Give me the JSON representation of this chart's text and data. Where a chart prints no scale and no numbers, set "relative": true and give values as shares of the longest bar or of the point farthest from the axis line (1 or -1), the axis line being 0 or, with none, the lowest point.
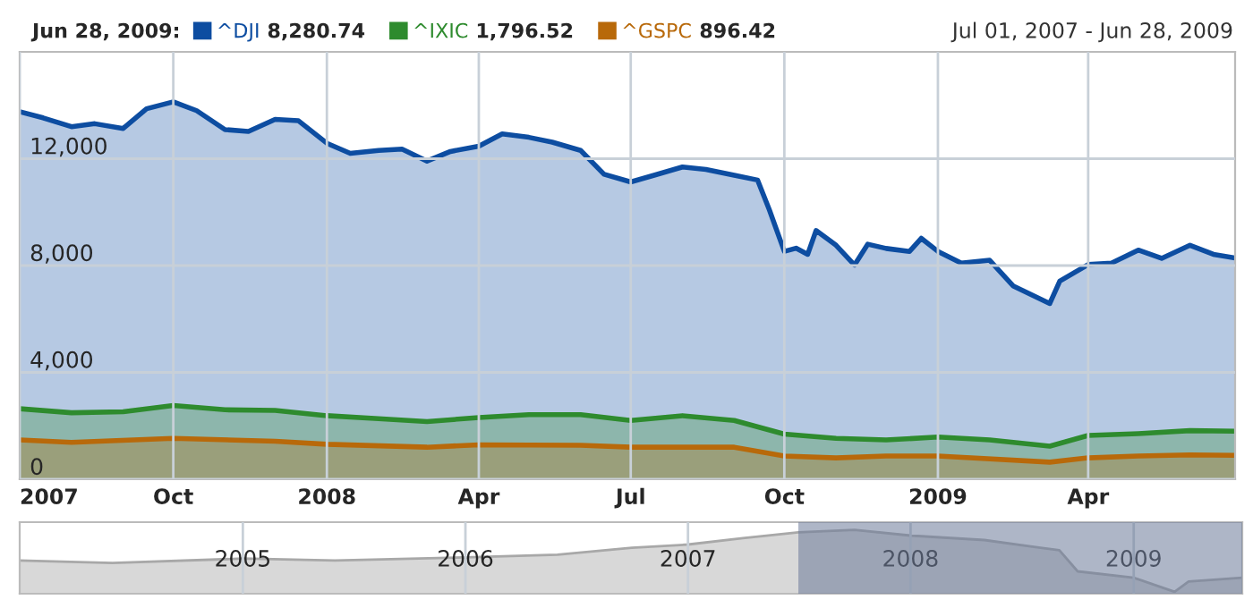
{
  "chart_data": [
    {
      "type": "area",
      "title": "Jun 28, 2009:",
      "subtitle": "Jul 01, 2007 - Jun 28, 2009",
      "annotations": [
        "8,280.74",
        "1,796.52",
        "896.42"
      ],
      "series": [
        {
          "name": "^DJI",
          "color": "#0d4da1",
          "x": [
            "2007-07-01",
            "2007-07-15",
            "2007-08-01",
            "2007-08-15",
            "2007-09-01",
            "2007-09-15",
            "2007-10-01",
            "2007-10-15",
            "2007-11-01",
            "2007-11-15",
            "2007-12-01",
            "2007-12-15",
            "2008-01-01",
            "2008-01-15",
            "2008-02-01",
            "2008-02-15",
            "2008-03-01",
            "2008-03-15",
            "2008-04-01",
            "2008-04-15",
            "2008-05-01",
            "2008-05-15",
            "2008-06-01",
            "2008-06-15",
            "2008-07-01",
            "2008-07-15",
            "2008-08-01",
            "2008-08-15",
            "2008-09-01",
            "2008-09-15",
            "2008-09-22",
            "2008-10-01",
            "2008-10-08",
            "2008-10-15",
            "2008-10-20",
            "2008-11-01",
            "2008-11-12",
            "2008-11-20",
            "2008-12-01",
            "2008-12-15",
            "2008-12-22",
            "2009-01-01",
            "2009-01-15",
            "2009-02-01",
            "2009-02-15",
            "2009-03-09",
            "2009-03-15",
            "2009-04-01",
            "2009-04-15",
            "2009-05-01",
            "2009-05-15",
            "2009-06-01",
            "2009-06-15",
            "2009-06-28"
          ],
          "values": [
            13760,
            13530,
            13200,
            13310,
            13130,
            13870,
            14130,
            13800,
            13090,
            13020,
            13470,
            13420,
            12580,
            12200,
            12310,
            12360,
            11910,
            12270,
            12470,
            12930,
            12800,
            12620,
            12310,
            11420,
            11130,
            11380,
            11690,
            11600,
            11380,
            11200,
            10090,
            8530,
            8650,
            8420,
            9310,
            8760,
            8020,
            8800,
            8640,
            8530,
            9020,
            8530,
            8090,
            8200,
            7240,
            6580,
            7420,
            8040,
            8090,
            8580,
            8270,
            8760,
            8420,
            8280
          ]
        },
        {
          "name": "^IXIC",
          "color": "#2e8b2e",
          "x": [
            "2007-07-01",
            "2007-08-01",
            "2007-09-01",
            "2007-10-01",
            "2007-11-01",
            "2007-12-01",
            "2008-01-01",
            "2008-02-01",
            "2008-03-01",
            "2008-04-01",
            "2008-05-01",
            "2008-06-01",
            "2008-07-01",
            "2008-08-01",
            "2008-09-01",
            "2008-10-01",
            "2008-11-01",
            "2008-12-01",
            "2009-01-01",
            "2009-02-01",
            "2009-03-09",
            "2009-04-01",
            "2009-05-01",
            "2009-06-01",
            "2009-06-28"
          ],
          "values": [
            2640,
            2490,
            2530,
            2760,
            2600,
            2580,
            2380,
            2270,
            2160,
            2310,
            2420,
            2420,
            2200,
            2380,
            2200,
            1690,
            1530,
            1470,
            1580,
            1470,
            1240,
            1640,
            1710,
            1820,
            1797
          ]
        },
        {
          "name": "^GSPC",
          "color": "#b8690a",
          "x": [
            "2007-07-01",
            "2007-08-01",
            "2007-10-01",
            "2007-12-01",
            "2008-01-01",
            "2008-03-01",
            "2008-04-01",
            "2008-06-01",
            "2008-07-01",
            "2008-09-01",
            "2008-10-01",
            "2008-11-01",
            "2008-12-01",
            "2009-01-01",
            "2009-03-09",
            "2009-04-01",
            "2009-05-01",
            "2009-06-01",
            "2009-06-28"
          ],
          "values": [
            1470,
            1380,
            1530,
            1420,
            1310,
            1200,
            1290,
            1270,
            1200,
            1200,
            870,
            800,
            870,
            870,
            640,
            800,
            870,
            910,
            896
          ]
        }
      ],
      "xlim": [
        "2007-07-01",
        "2009-06-28"
      ],
      "xticks": [
        {
          "value": "2007-07-01",
          "label": "2007"
        },
        {
          "value": "2007-10-01",
          "label": "Oct"
        },
        {
          "value": "2008-01-01",
          "label": "2008"
        },
        {
          "value": "2008-04-01",
          "label": "Apr"
        },
        {
          "value": "2008-07-01",
          "label": "Jul"
        },
        {
          "value": "2008-10-01",
          "label": "Oct"
        },
        {
          "value": "2009-01-01",
          "label": "2009"
        },
        {
          "value": "2009-04-01",
          "label": "Apr"
        }
      ],
      "ylim": [
        0,
        16000
      ],
      "yticks": [
        0,
        {
          "value": 4000,
          "label": "4,000"
        },
        {
          "value": 8000,
          "label": "8,000"
        },
        {
          "value": 12000,
          "label": "12,000"
        }
      ],
      "grid": true,
      "legend": "top"
    },
    {
      "type": "area",
      "relative": true,
      "tick_labels": "x",
      "grid": "x",
      "series": [
        {
          "color": "#a8a8a8",
          "x": [
            "2004-01-01",
            "2004-06-01",
            "2005-01-01",
            "2005-06-01",
            "2006-01-01",
            "2006-06-01",
            "2006-10-01",
            "2007-01-01",
            "2007-04-01",
            "2007-07-01",
            "2007-10-01",
            "2008-01-01",
            "2008-05-01",
            "2008-08-01",
            "2008-09-01",
            "2008-10-01",
            "2009-01-01",
            "2009-03-09",
            "2009-04-01",
            "2009-06-28"
          ],
          "values": [
            0.52,
            0.48,
            0.55,
            0.52,
            0.57,
            0.61,
            0.72,
            0.77,
            0.87,
            0.96,
            1,
            0.91,
            0.84,
            0.72,
            0.68,
            0.35,
            0.25,
            0.03,
            0.19,
            0.25
          ]
        }
      ],
      "xlim": [
        "2004-01-01",
        "2009-06-28"
      ],
      "xticks": [
        {
          "value": "2005-01-01",
          "label": "2005"
        },
        {
          "value": "2006-01-01",
          "label": "2006"
        },
        {
          "value": "2007-01-01",
          "label": "2007"
        },
        {
          "value": "2008-01-01",
          "label": "2008"
        },
        {
          "value": "2009-01-01",
          "label": "2009"
        }
      ],
      "bands": [
        {
          "axis": "x",
          "from": "2007-07-01",
          "to": "2009-06-28",
          "color": "#6b7a99"
        }
      ]
    }
  ]
}
